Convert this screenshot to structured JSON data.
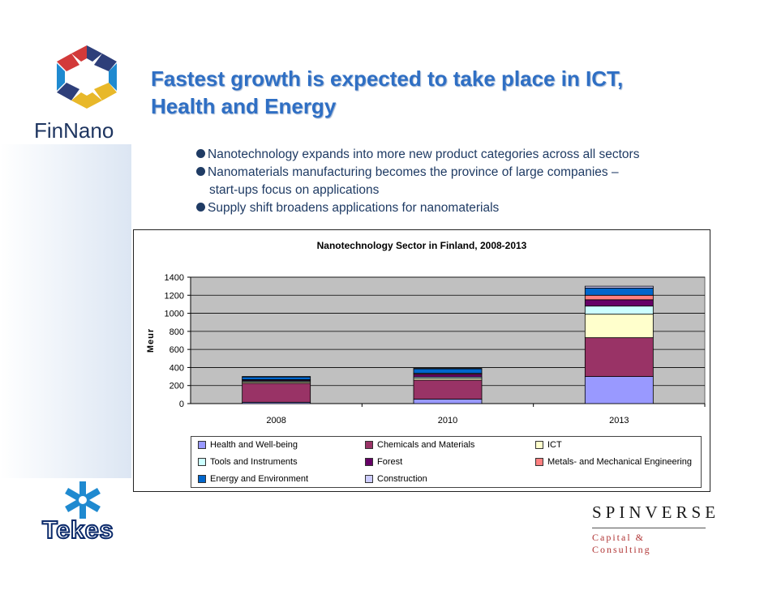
{
  "brand": {
    "finnano": "FinNano",
    "tekes": "Tekes",
    "spinverse_name": "SPINVERSE",
    "spinverse_sub": "Capital & Consulting"
  },
  "title": {
    "line1": "Fastest growth is expected to take place in ICT,",
    "line2": "Health and Energy"
  },
  "bullets": [
    "Nanotechnology expands into more new product categories across all sectors",
    "Nanomaterials manufacturing becomes the province of large companies –",
    "start-ups focus on applications",
    "Supply shift broadens applications for nanomaterials"
  ],
  "chart_data": {
    "type": "bar",
    "stacked": true,
    "title": "Nanotechnology Sector in Finland, 2008-2013",
    "xlabel": "",
    "ylabel": "Meur",
    "ylim": [
      0,
      1400
    ],
    "yticks": [
      0,
      200,
      400,
      600,
      800,
      1000,
      1200,
      1400
    ],
    "categories": [
      "2008",
      "2010",
      "2013"
    ],
    "grid": true,
    "legend_position": "bottom",
    "series": [
      {
        "name": "Health and Well-being",
        "color": "#9999ff",
        "values": [
          15,
          50,
          300
        ]
      },
      {
        "name": "Chemicals and Materials",
        "color": "#993366",
        "values": [
          210,
          210,
          430
        ]
      },
      {
        "name": "ICT",
        "color": "#ffffcc",
        "values": [
          15,
          20,
          260
        ]
      },
      {
        "name": "Tools and Instruments",
        "color": "#ccffff",
        "values": [
          10,
          15,
          90
        ]
      },
      {
        "name": "Forest",
        "color": "#660066",
        "values": [
          10,
          30,
          70
        ]
      },
      {
        "name": "Metals- and Mechanical Engineering",
        "color": "#ff8080",
        "values": [
          5,
          10,
          50
        ]
      },
      {
        "name": "Energy and Environment",
        "color": "#0066cc",
        "values": [
          30,
          50,
          80
        ]
      },
      {
        "name": "Construction",
        "color": "#ccccff",
        "values": [
          5,
          5,
          20
        ]
      }
    ]
  }
}
